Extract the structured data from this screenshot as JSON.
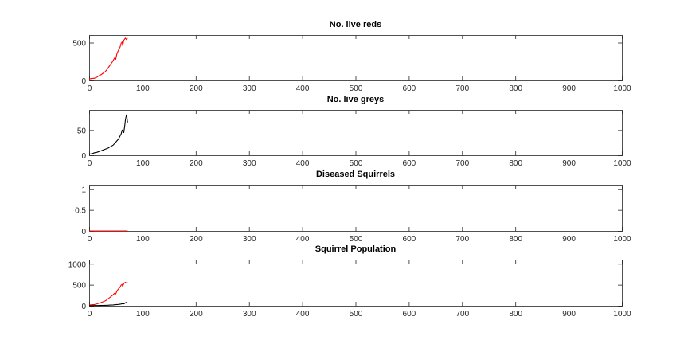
{
  "chart_data": [
    {
      "type": "line",
      "title": "No. live reds",
      "xlim": [
        0,
        1000
      ],
      "ylim": [
        0,
        600
      ],
      "xticks": [
        "0",
        "100",
        "200",
        "300",
        "400",
        "500",
        "600",
        "700",
        "800",
        "900",
        "1000"
      ],
      "yticks": [
        "0",
        "500"
      ],
      "xtick_values": [
        0,
        100,
        200,
        300,
        400,
        500,
        600,
        700,
        800,
        900,
        1000
      ],
      "ytick_values": [
        0,
        500
      ],
      "grid": false,
      "series": [
        {
          "color": "#ff0000",
          "x": [
            0,
            5,
            10,
            15,
            18,
            22,
            26,
            30,
            34,
            38,
            40,
            44,
            48,
            50,
            52,
            55,
            58,
            60,
            62,
            63,
            65,
            68,
            70,
            72
          ],
          "y": [
            20,
            25,
            30,
            45,
            60,
            75,
            95,
            115,
            150,
            190,
            210,
            250,
            300,
            280,
            350,
            400,
            440,
            490,
            510,
            460,
            530,
            560,
            540,
            560
          ]
        }
      ]
    },
    {
      "type": "line",
      "title": "No. live greys",
      "xlim": [
        0,
        1000
      ],
      "ylim": [
        0,
        90
      ],
      "xticks": [
        "0",
        "100",
        "200",
        "300",
        "400",
        "500",
        "600",
        "700",
        "800",
        "900",
        "1000"
      ],
      "yticks": [
        "0",
        "50"
      ],
      "xtick_values": [
        0,
        100,
        200,
        300,
        400,
        500,
        600,
        700,
        800,
        900,
        1000
      ],
      "ytick_values": [
        0,
        50
      ],
      "grid": false,
      "series": [
        {
          "color": "#000000",
          "x": [
            0,
            5,
            10,
            15,
            20,
            25,
            30,
            35,
            40,
            45,
            50,
            55,
            60,
            62,
            65,
            67,
            68,
            70,
            71,
            72
          ],
          "y": [
            2,
            3,
            5,
            6,
            8,
            10,
            12,
            14,
            17,
            20,
            26,
            32,
            42,
            50,
            45,
            60,
            70,
            80,
            75,
            65
          ]
        }
      ]
    },
    {
      "type": "line",
      "title": "Diseased Squirrels",
      "xlim": [
        0,
        1000
      ],
      "ylim": [
        0,
        1.1
      ],
      "xticks": [
        "0",
        "100",
        "200",
        "300",
        "400",
        "500",
        "600",
        "700",
        "800",
        "900",
        "1000"
      ],
      "yticks": [
        "0",
        "0.5",
        "1"
      ],
      "xtick_values": [
        0,
        100,
        200,
        300,
        400,
        500,
        600,
        700,
        800,
        900,
        1000
      ],
      "ytick_values": [
        0,
        0.5,
        1
      ],
      "grid": false,
      "series": [
        {
          "color": "#000000",
          "x": [
            0,
            72
          ],
          "y": [
            0,
            0
          ]
        },
        {
          "color": "#ff0000",
          "x": [
            0,
            72
          ],
          "y": [
            0,
            0
          ]
        }
      ]
    },
    {
      "type": "line",
      "title": "Squirrel Population",
      "xlim": [
        0,
        1000
      ],
      "ylim": [
        0,
        1100
      ],
      "xticks": [
        "0",
        "100",
        "200",
        "300",
        "400",
        "500",
        "600",
        "700",
        "800",
        "900",
        "1000"
      ],
      "yticks": [
        "0",
        "500",
        "1000"
      ],
      "xtick_values": [
        0,
        100,
        200,
        300,
        400,
        500,
        600,
        700,
        800,
        900,
        1000
      ],
      "ytick_values": [
        0,
        500,
        1000
      ],
      "grid": false,
      "series": [
        {
          "color": "#ff0000",
          "x": [
            0,
            5,
            10,
            15,
            18,
            22,
            26,
            30,
            34,
            38,
            40,
            44,
            48,
            50,
            52,
            55,
            58,
            60,
            62,
            63,
            65,
            68,
            70,
            72
          ],
          "y": [
            20,
            25,
            30,
            45,
            60,
            75,
            95,
            115,
            150,
            190,
            210,
            250,
            300,
            280,
            350,
            400,
            440,
            490,
            510,
            460,
            530,
            560,
            540,
            560
          ]
        },
        {
          "color": "#000000",
          "x": [
            0,
            5,
            10,
            15,
            20,
            25,
            30,
            35,
            40,
            45,
            50,
            55,
            60,
            62,
            65,
            67,
            68,
            70,
            71,
            72
          ],
          "y": [
            2,
            3,
            5,
            6,
            8,
            10,
            12,
            14,
            17,
            20,
            26,
            32,
            42,
            50,
            45,
            60,
            70,
            80,
            75,
            65
          ]
        }
      ]
    }
  ]
}
